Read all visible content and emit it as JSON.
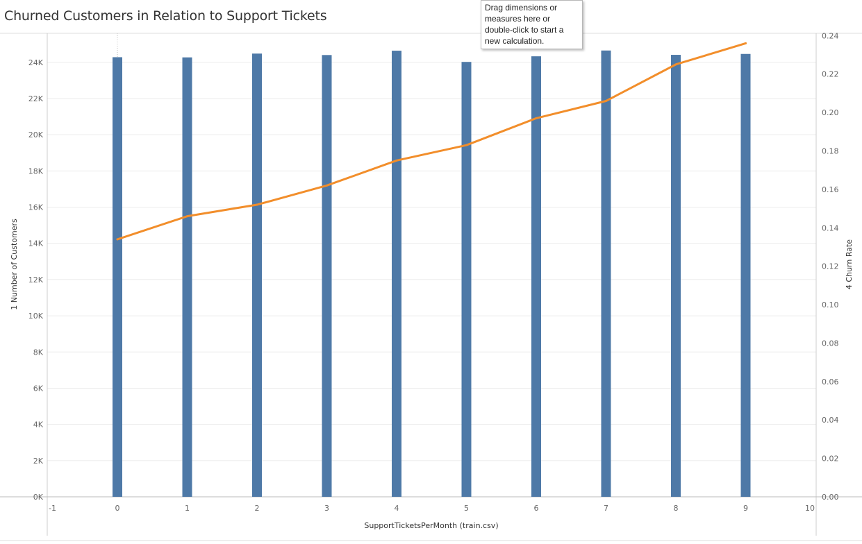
{
  "title": "Churned Customers in Relation to Support Tickets",
  "tooltip": {
    "text": "Drag dimensions or measures here or double-click to start a new calculation."
  },
  "colors": {
    "bars": "#4e79a7",
    "line": "#f28e2b",
    "grid": "#ebebeb",
    "axis": "#cccccc",
    "text": "#666666"
  },
  "chart_data": {
    "type": "bar",
    "combo": "bar + line (dual axis)",
    "title": "Churned Customers in Relation to Support Tickets",
    "xlabel": "SupportTicketsPerMonth (train.csv)",
    "ylabel_left": "1 Number of Customers",
    "ylabel_right": "4 Churn Rate",
    "x_ticks": [
      "-1",
      "0",
      "1",
      "2",
      "3",
      "4",
      "5",
      "6",
      "7",
      "8",
      "9",
      "10"
    ],
    "xlim": [
      -1,
      10
    ],
    "x": [
      0,
      1,
      2,
      3,
      4,
      5,
      6,
      7,
      8,
      9
    ],
    "series": [
      {
        "name": "1 Number of Customers",
        "mark": "bar",
        "axis": "left",
        "values": [
          24280,
          24270,
          24480,
          24400,
          24640,
          24020,
          24330,
          24650,
          24410,
          24460
        ]
      },
      {
        "name": "4 Churn Rate",
        "mark": "line",
        "axis": "right",
        "values": [
          0.134,
          0.146,
          0.152,
          0.162,
          0.175,
          0.183,
          0.197,
          0.206,
          0.225,
          0.236
        ]
      }
    ],
    "ylim_left": [
      0,
      25600
    ],
    "y_ticks_left": [
      "0K",
      "2K",
      "4K",
      "6K",
      "8K",
      "10K",
      "12K",
      "14K",
      "16K",
      "18K",
      "20K",
      "22K",
      "24K"
    ],
    "y_ticks_left_values": [
      0,
      2000,
      4000,
      6000,
      8000,
      10000,
      12000,
      14000,
      16000,
      18000,
      20000,
      22000,
      24000
    ],
    "ylim_right": [
      0,
      0.2412
    ],
    "y_ticks_right": [
      "0.00",
      "0.02",
      "0.04",
      "0.06",
      "0.08",
      "0.10",
      "0.12",
      "0.14",
      "0.16",
      "0.18",
      "0.20",
      "0.22",
      "0.24"
    ],
    "y_ticks_right_values": [
      0,
      0.02,
      0.04,
      0.06,
      0.08,
      0.1,
      0.12,
      0.14,
      0.16,
      0.18,
      0.2,
      0.22,
      0.24
    ],
    "grid": true,
    "legend": "none"
  }
}
